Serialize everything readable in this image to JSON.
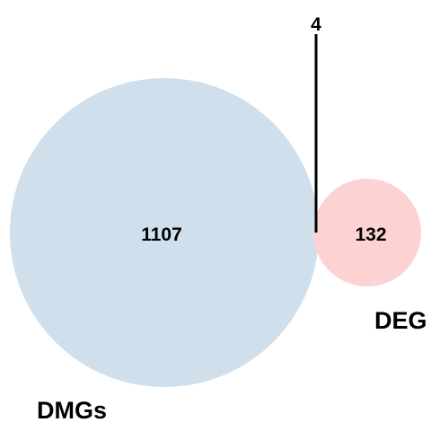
{
  "venn": {
    "sets": [
      {
        "name": "DMGs",
        "only_count": "1107",
        "color": "#cfdfec"
      },
      {
        "name": "DEG",
        "only_count": "132",
        "color": "#fcd2d2"
      }
    ],
    "intersection_count": "4"
  }
}
